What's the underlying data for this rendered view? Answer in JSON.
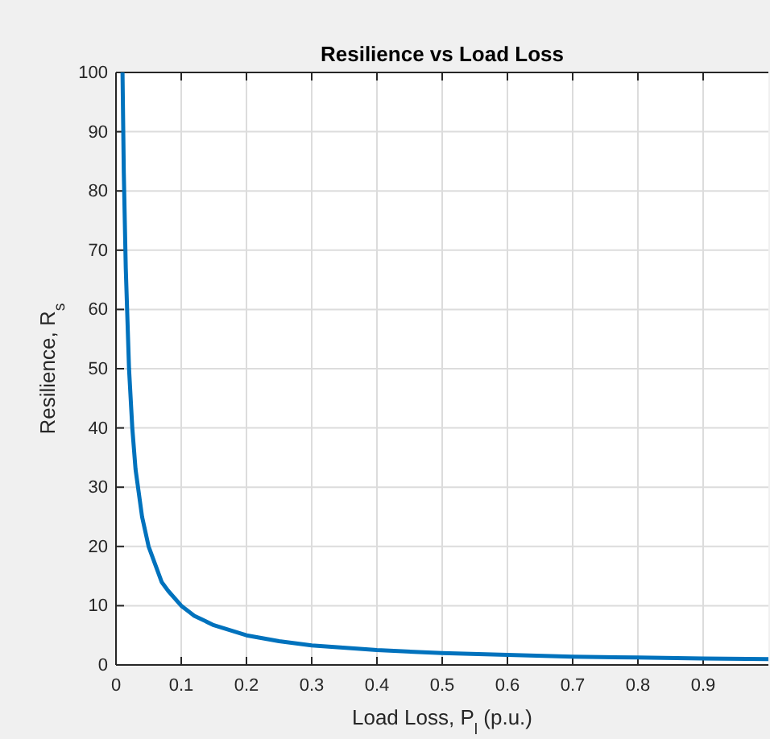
{
  "chart_data": {
    "type": "line",
    "title": "Resilience vs Load Loss",
    "xlabel": "Load Loss, P$_{l}$ (p.u.)",
    "ylabel": "Resilience, R$_{s}$",
    "x": [
      0.01,
      0.012,
      0.015,
      0.02,
      0.025,
      0.03,
      0.04,
      0.05,
      0.06,
      0.07,
      0.08,
      0.1,
      0.12,
      0.15,
      0.2,
      0.25,
      0.3,
      0.4,
      0.5,
      0.6,
      0.7,
      0.8,
      0.9,
      1.0
    ],
    "series": [
      {
        "color": "#0072bd",
        "values": [
          100,
          83,
          67,
          50,
          40,
          33,
          25,
          20,
          17,
          14,
          12.5,
          10,
          8.3,
          6.7,
          5,
          4,
          3.3,
          2.5,
          2,
          1.7,
          1.4,
          1.25,
          1.1,
          1
        ]
      }
    ],
    "xlim": [
      0,
      1
    ],
    "ylim": [
      0,
      100
    ],
    "xticks": [
      0,
      0.1,
      0.2,
      0.3,
      0.4,
      0.5,
      0.6,
      0.7,
      0.8,
      0.9
    ],
    "yticks": [
      0,
      10,
      20,
      30,
      40,
      50,
      60,
      70,
      80,
      90,
      100
    ],
    "grid": true,
    "marker": "none",
    "line_style": "solid"
  }
}
